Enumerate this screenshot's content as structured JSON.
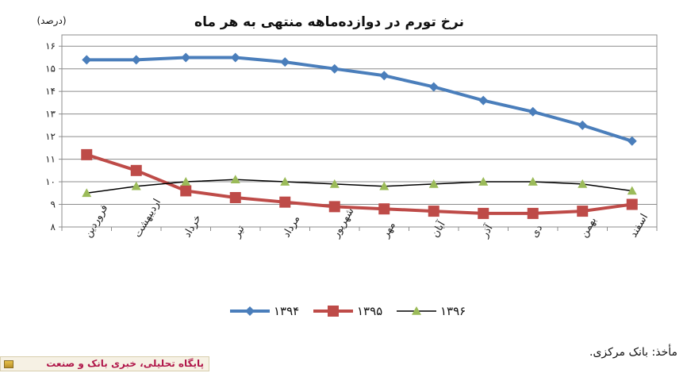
{
  "title": "نرخ تورم در دوازده‌ماهه منتهی به هر ماه",
  "unit_label": "(درصد)",
  "source": "مأخذ: بانک مرکزی.",
  "footer_badge": "پایگاه تحلیلی، خبری بانک و صنعت",
  "chart_data": {
    "type": "line",
    "title": "نرخ تورم در دوازده‌ماهه منتهی به هر ماه",
    "unit": "(درصد)",
    "categories": [
      "فروردین",
      "اردیبهشت",
      "خرداد",
      "تیر",
      "مرداد",
      "شهریور",
      "مهر",
      "آبان",
      "آذر",
      "دی",
      "بهمن",
      "اسفند"
    ],
    "y_tick_labels": [
      "۸",
      "۹",
      "۱۰",
      "۱۱",
      "۱۲",
      "۱۳",
      "۱۴",
      "۱۵",
      "۱۶"
    ],
    "ylim": [
      8,
      16.5
    ],
    "grid": true,
    "legend_position": "bottom",
    "series": [
      {
        "name": "۱۳۹۴",
        "color": "#4a7ebb",
        "marker": "diamond",
        "values": [
          15.4,
          15.4,
          15.5,
          15.5,
          15.3,
          15.0,
          14.7,
          14.2,
          13.6,
          13.1,
          12.5,
          11.8
        ]
      },
      {
        "name": "۱۳۹۵",
        "color": "#be4b48",
        "marker": "square",
        "values": [
          11.2,
          10.5,
          9.6,
          9.3,
          9.1,
          8.9,
          8.8,
          8.7,
          8.6,
          8.6,
          8.7,
          9.0
        ]
      },
      {
        "name": "۱۳۹۶",
        "color": "#000000",
        "marker": "triangle",
        "marker_color": "#9bbb59",
        "values": [
          9.5,
          9.8,
          10.0,
          10.1,
          10.0,
          9.9,
          9.8,
          9.9,
          10.0,
          10.0,
          9.9,
          9.6
        ]
      }
    ]
  }
}
